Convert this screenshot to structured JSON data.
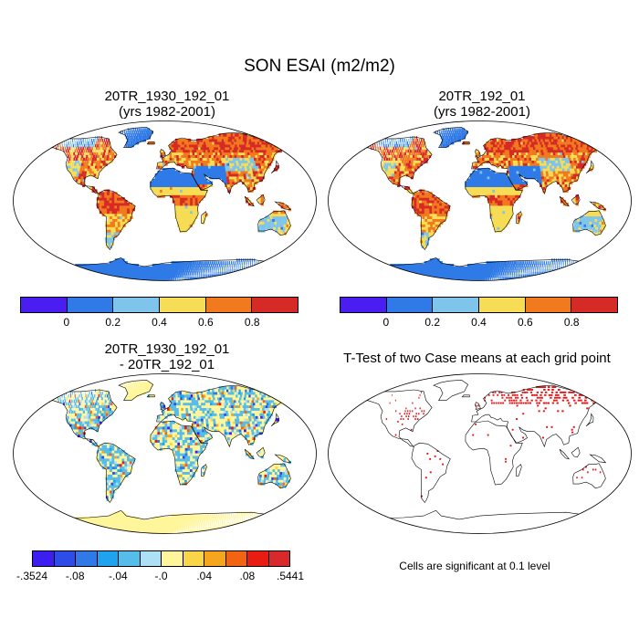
{
  "figure_title": "SON ESAI (m2/m2)",
  "panels": {
    "top_left": {
      "title_line1": "20TR_1930_192_01",
      "title_line2": "(yrs 1982-2001)"
    },
    "top_right": {
      "title_line1": "20TR_192_01",
      "title_line2": "(yrs 1982-2001)"
    },
    "bottom_left": {
      "title_line1": "20TR_1930_192_01",
      "title_line2": "- 20TR_192_01"
    },
    "bottom_right": {
      "title": "T-Test of two Case means at each grid point",
      "note": "Cells are significant at 0.1 level"
    }
  },
  "colorbars": {
    "main": {
      "colors": [
        "#4a1ef0",
        "#2f7ae6",
        "#7fc4ea",
        "#f6dd55",
        "#f27a1e",
        "#d62a26"
      ],
      "labels": [
        "0",
        "0.2",
        "0.4",
        "0.6",
        "0.8"
      ]
    },
    "diff": {
      "colors": [
        "#3c1ef0",
        "#2e4ce8",
        "#2f7ae6",
        "#1fa3ee",
        "#56bdea",
        "#aee0f5",
        "#fff59a",
        "#f9d648",
        "#f6a61c",
        "#f06414",
        "#e81c10",
        "#d82a2a"
      ],
      "labels": [
        "-.3524",
        "-.08",
        "-.04",
        "-.0",
        ".04",
        ".08",
        ".5441"
      ]
    }
  },
  "legend_colors": {
    "sig": "#e41515",
    "ocean": "#ffffff",
    "outline": "#000000"
  }
}
